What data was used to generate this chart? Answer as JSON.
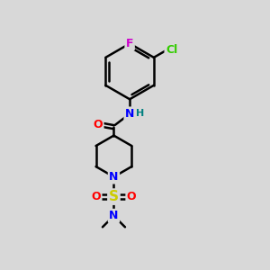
{
  "bg_color": "#dcdcdc",
  "atom_colors": {
    "C": "#000000",
    "N": "#0000ff",
    "O": "#ff0000",
    "F": "#cc00cc",
    "Cl": "#33cc00",
    "S": "#cccc00",
    "H": "#008080"
  },
  "bond_color": "#000000",
  "bond_width": 1.8,
  "fig_bg": "#d8d8d8"
}
